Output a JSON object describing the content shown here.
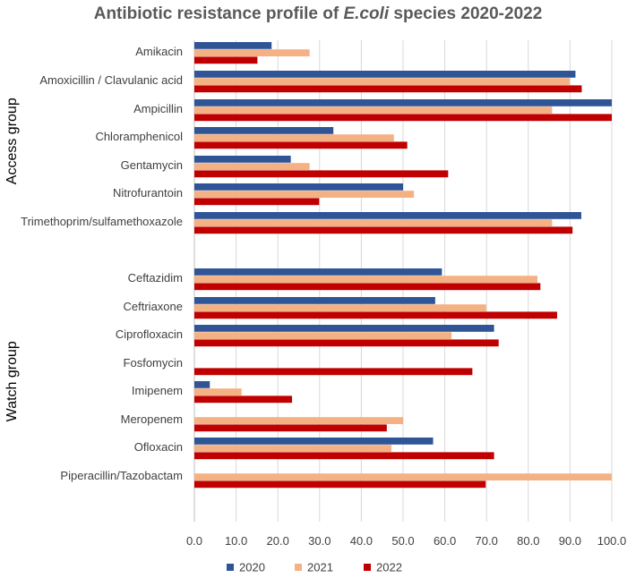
{
  "chart_data": {
    "type": "bar",
    "orientation": "horizontal",
    "title": {
      "before": "Antibiotic resistance profile of ",
      "italic": "E.coli",
      "after": " species 2020-2022"
    },
    "xlim": [
      0,
      100
    ],
    "xticks": [
      "0.0",
      "10.0",
      "20.0",
      "30.0",
      "40.0",
      "50.0",
      "60.0",
      "70.0",
      "80.0",
      "90.0",
      "100.0"
    ],
    "grid": true,
    "legend_position": "bottom",
    "groups": [
      {
        "label": "Access group",
        "categories": [
          "Amikacin",
          "Amoxicillin / Clavulanic acid",
          "Ampicillin",
          "Chloramphenicol",
          "Gentamycin",
          "Nitrofurantoin",
          "Trimethoprim/sulfamethoxazole"
        ]
      },
      {
        "label": "Watch  group",
        "categories": [
          "Ceftazidim",
          "Ceftriaxone",
          "Ciprofloxacin",
          "Fosfomycin",
          "Imipenem",
          "Meropenem",
          "Ofloxacin",
          "Piperacillin/Tazobactam"
        ]
      }
    ],
    "series": [
      {
        "name": "2020",
        "color": "#2F5597",
        "values": [
          18.5,
          91.3,
          100,
          33.3,
          23.1,
          50.0,
          92.7,
          null,
          59.3,
          57.7,
          71.8,
          0,
          3.7,
          0,
          57.2,
          0
        ]
      },
      {
        "name": "2021",
        "color": "#F4B183",
        "values": [
          27.6,
          89.9,
          85.7,
          47.8,
          27.6,
          52.6,
          85.7,
          null,
          82.2,
          69.9,
          61.6,
          0,
          11.3,
          50.0,
          47.2,
          100
        ]
      },
      {
        "name": "2022",
        "color": "#C00000",
        "values": [
          15.1,
          92.8,
          100,
          51.0,
          60.8,
          29.9,
          90.6,
          null,
          82.9,
          86.9,
          72.9,
          66.6,
          23.4,
          46.1,
          71.8,
          69.8
        ]
      }
    ]
  }
}
